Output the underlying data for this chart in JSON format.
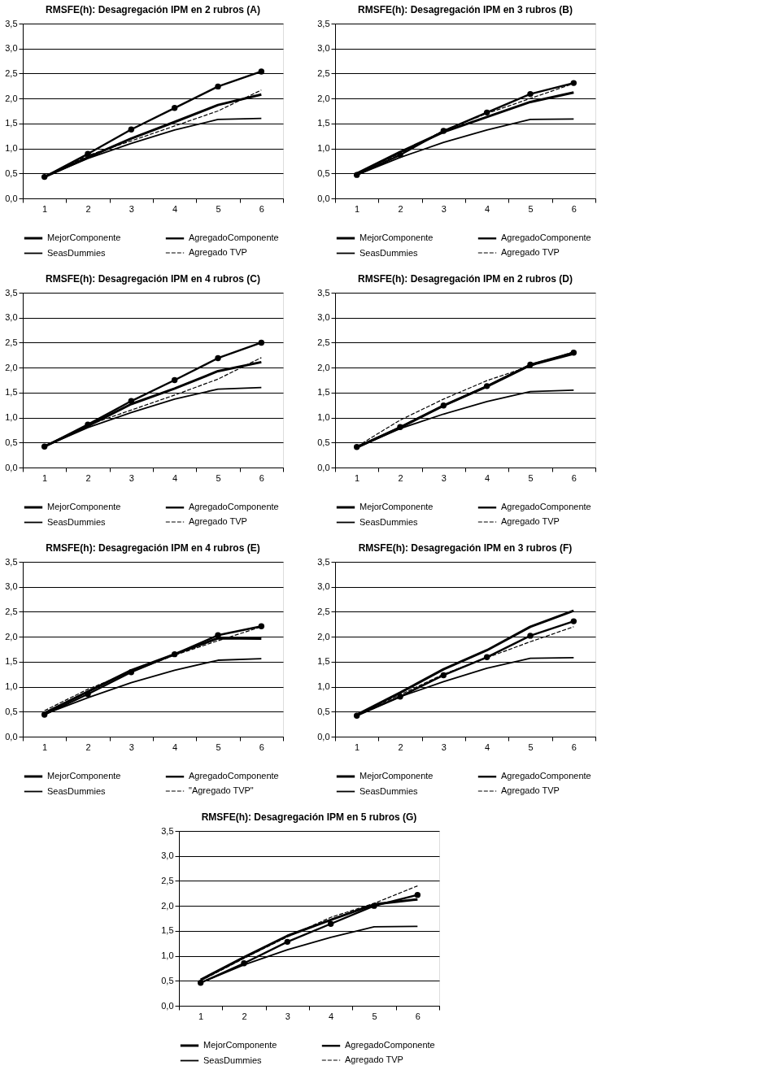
{
  "chart_data": [
    {
      "type": "line",
      "title": "RMSFE(h): Desagregación IPM en 2 rubros (A)",
      "categories": [
        "1",
        "2",
        "3",
        "4",
        "5",
        "6"
      ],
      "ylim": [
        0,
        3.5
      ],
      "yticks": [
        {
          "value": 0,
          "label": "0,0"
        },
        {
          "value": 0.5,
          "label": "0,5"
        },
        {
          "value": 1,
          "label": "1,0"
        },
        {
          "value": 1.5,
          "label": "1,5"
        },
        {
          "value": 2,
          "label": "2,0"
        },
        {
          "value": 2.5,
          "label": "2,5"
        },
        {
          "value": 3,
          "label": "3,0"
        },
        {
          "value": 3.5,
          "label": "3,5"
        }
      ],
      "grid": "y",
      "legend": "bottom",
      "series": [
        {
          "name": "MejorComponente",
          "color": "#000000",
          "values": [
            0.43,
            0.82,
            1.2,
            1.53,
            1.87,
            2.08
          ]
        },
        {
          "name": "AgregadoComponente",
          "color": "#000000",
          "marker": "circle",
          "values": [
            0.43,
            0.89,
            1.38,
            1.81,
            2.24,
            2.54
          ]
        },
        {
          "name": "SeasDummies",
          "color": "#000000",
          "values": [
            0.43,
            0.8,
            1.1,
            1.37,
            1.58,
            1.6
          ]
        },
        {
          "name": "Agregado TVP",
          "color": "#000000",
          "line_style": "dashed",
          "values": [
            0.43,
            0.86,
            1.15,
            1.45,
            1.75,
            2.17
          ]
        }
      ]
    },
    {
      "type": "line",
      "title": "RMSFE(h): Desagregación IPM en 3 rubros (B)",
      "categories": [
        "1",
        "2",
        "3",
        "4",
        "5",
        "6"
      ],
      "ylim": [
        0,
        3.5
      ],
      "yticks": [
        {
          "value": 0,
          "label": "0,0"
        },
        {
          "value": 0.5,
          "label": "0,5"
        },
        {
          "value": 1,
          "label": "1,0"
        },
        {
          "value": 1.5,
          "label": "1,5"
        },
        {
          "value": 2,
          "label": "2,0"
        },
        {
          "value": 2.5,
          "label": "2,5"
        },
        {
          "value": 3,
          "label": "3,0"
        },
        {
          "value": 3.5,
          "label": "3,5"
        }
      ],
      "grid": "y",
      "legend": "bottom",
      "series": [
        {
          "name": "MejorComponente",
          "color": "#000000",
          "values": [
            0.5,
            0.93,
            1.33,
            1.63,
            1.93,
            2.12
          ]
        },
        {
          "name": "AgregadoComponente",
          "color": "#000000",
          "marker": "circle",
          "values": [
            0.47,
            0.87,
            1.35,
            1.72,
            2.09,
            2.31
          ]
        },
        {
          "name": "SeasDummies",
          "color": "#000000",
          "values": [
            0.47,
            0.82,
            1.12,
            1.37,
            1.58,
            1.59
          ]
        },
        {
          "name": "Agregado TVP",
          "color": "#000000",
          "line_style": "dashed",
          "values": [
            0.5,
            0.9,
            1.36,
            1.7,
            2.0,
            2.3
          ]
        }
      ]
    },
    {
      "type": "line",
      "title": "RMSFE(h): Desagregación IPM en 4 rubros (C)",
      "categories": [
        "1",
        "2",
        "3",
        "4",
        "5",
        "6"
      ],
      "ylim": [
        0,
        3.5
      ],
      "yticks": [
        {
          "value": 0,
          "label": "0,0"
        },
        {
          "value": 0.5,
          "label": "0,5"
        },
        {
          "value": 1,
          "label": "1,0"
        },
        {
          "value": 1.5,
          "label": "1,5"
        },
        {
          "value": 2,
          "label": "2,0"
        },
        {
          "value": 2.5,
          "label": "2,5"
        },
        {
          "value": 3,
          "label": "3,0"
        },
        {
          "value": 3.5,
          "label": "3,5"
        }
      ],
      "grid": "y",
      "legend": "bottom",
      "series": [
        {
          "name": "MejorComponente",
          "color": "#000000",
          "values": [
            0.42,
            0.83,
            1.27,
            1.58,
            1.93,
            2.11
          ]
        },
        {
          "name": "AgregadoComponente",
          "color": "#000000",
          "marker": "circle",
          "values": [
            0.42,
            0.86,
            1.33,
            1.75,
            2.19,
            2.5
          ]
        },
        {
          "name": "SeasDummies",
          "color": "#000000",
          "values": [
            0.42,
            0.8,
            1.1,
            1.37,
            1.57,
            1.6
          ]
        },
        {
          "name": "Agregado TVP",
          "color": "#000000",
          "line_style": "dashed",
          "values": [
            0.42,
            0.85,
            1.15,
            1.45,
            1.77,
            2.2
          ]
        }
      ]
    },
    {
      "type": "line",
      "title": "RMSFE(h): Desagregación IPM en 2 rubros (D)",
      "categories": [
        "1",
        "2",
        "3",
        "4",
        "5",
        "6"
      ],
      "ylim": [
        0,
        3.5
      ],
      "yticks": [
        {
          "value": 0,
          "label": "0,0"
        },
        {
          "value": 0.5,
          "label": "0,5"
        },
        {
          "value": 1,
          "label": "1,0"
        },
        {
          "value": 1.5,
          "label": "1,5"
        },
        {
          "value": 2,
          "label": "2,0"
        },
        {
          "value": 2.5,
          "label": "2,5"
        },
        {
          "value": 3,
          "label": "3,0"
        },
        {
          "value": 3.5,
          "label": "3,5"
        }
      ],
      "grid": "y",
      "legend": "bottom",
      "series": [
        {
          "name": "MejorComponente",
          "color": "#000000",
          "values": [
            0.4,
            0.8,
            1.24,
            1.62,
            2.05,
            2.28
          ]
        },
        {
          "name": "AgregadoComponente",
          "color": "#000000",
          "marker": "circle",
          "values": [
            0.41,
            0.81,
            1.24,
            1.63,
            2.06,
            2.3
          ]
        },
        {
          "name": "SeasDummies",
          "color": "#000000",
          "values": [
            0.4,
            0.78,
            1.07,
            1.32,
            1.52,
            1.55
          ]
        },
        {
          "name": "Agregado TVP",
          "color": "#000000",
          "line_style": "dashed",
          "values": [
            0.42,
            0.95,
            1.37,
            1.74,
            2.03,
            2.32
          ]
        }
      ]
    },
    {
      "type": "line",
      "title": "RMSFE(h): Desagregación IPM en 4 rubros (E)",
      "categories": [
        "1",
        "2",
        "3",
        "4",
        "5",
        "6"
      ],
      "ylim": [
        0,
        3.5
      ],
      "yticks": [
        {
          "value": 0,
          "label": "0,0"
        },
        {
          "value": 0.5,
          "label": "0,5"
        },
        {
          "value": 1,
          "label": "1,0"
        },
        {
          "value": 1.5,
          "label": "1,5"
        },
        {
          "value": 2,
          "label": "2,0"
        },
        {
          "value": 2.5,
          "label": "2,5"
        },
        {
          "value": 3,
          "label": "3,0"
        },
        {
          "value": 3.5,
          "label": "3,5"
        }
      ],
      "grid": "y",
      "legend": "bottom",
      "series": [
        {
          "name": "MejorComponente",
          "color": "#000000",
          "values": [
            0.47,
            0.9,
            1.33,
            1.65,
            1.97,
            1.96
          ]
        },
        {
          "name": "AgregadoComponente",
          "color": "#000000",
          "marker": "circle",
          "values": [
            0.44,
            0.85,
            1.29,
            1.65,
            2.03,
            2.21
          ]
        },
        {
          "name": "SeasDummies",
          "color": "#000000",
          "values": [
            0.45,
            0.78,
            1.08,
            1.33,
            1.53,
            1.56
          ]
        },
        {
          "name": "\"Agregado TVP\"",
          "color": "#000000",
          "line_style": "dashed",
          "values": [
            0.52,
            0.95,
            1.3,
            1.63,
            1.92,
            2.2
          ]
        }
      ]
    },
    {
      "type": "line",
      "title": "RMSFE(h): Desagregación IPM en 3 rubros (F)",
      "categories": [
        "1",
        "2",
        "3",
        "4",
        "5",
        "6"
      ],
      "ylim": [
        0,
        3.5
      ],
      "yticks": [
        {
          "value": 0,
          "label": "0,0"
        },
        {
          "value": 0.5,
          "label": "0,5"
        },
        {
          "value": 1,
          "label": "1,0"
        },
        {
          "value": 1.5,
          "label": "1,5"
        },
        {
          "value": 2,
          "label": "2,0"
        },
        {
          "value": 2.5,
          "label": "2,5"
        },
        {
          "value": 3,
          "label": "3,0"
        },
        {
          "value": 3.5,
          "label": "3,5"
        }
      ],
      "grid": "y",
      "legend": "bottom",
      "series": [
        {
          "name": "MejorComponente",
          "color": "#000000",
          "values": [
            0.44,
            0.88,
            1.35,
            1.73,
            2.2,
            2.52
          ]
        },
        {
          "name": "AgregadoComponente",
          "color": "#000000",
          "marker": "circle",
          "values": [
            0.42,
            0.8,
            1.23,
            1.59,
            2.02,
            2.31
          ]
        },
        {
          "name": "SeasDummies",
          "color": "#000000",
          "values": [
            0.43,
            0.8,
            1.1,
            1.37,
            1.57,
            1.58
          ]
        },
        {
          "name": "Agregado TVP",
          "color": "#000000",
          "line_style": "dashed",
          "values": [
            0.44,
            0.84,
            1.25,
            1.58,
            1.9,
            2.2
          ]
        }
      ]
    },
    {
      "type": "line",
      "title": "RMSFE(h): Desagregación IPM en 5 rubros (G)",
      "categories": [
        "1",
        "2",
        "3",
        "4",
        "5",
        "6"
      ],
      "ylim": [
        0,
        3.5
      ],
      "yticks": [
        {
          "value": 0,
          "label": "0,0"
        },
        {
          "value": 0.5,
          "label": "0,5"
        },
        {
          "value": 1,
          "label": "1,0"
        },
        {
          "value": 1.5,
          "label": "1,5"
        },
        {
          "value": 2,
          "label": "2,0"
        },
        {
          "value": 2.5,
          "label": "2,5"
        },
        {
          "value": 3,
          "label": "3,0"
        },
        {
          "value": 3.5,
          "label": "3,5"
        }
      ],
      "grid": "y",
      "legend": "bottom",
      "series": [
        {
          "name": "MejorComponente",
          "color": "#000000",
          "values": [
            0.52,
            0.97,
            1.4,
            1.72,
            2.03,
            2.13
          ]
        },
        {
          "name": "AgregadoComponente",
          "color": "#000000",
          "marker": "circle",
          "values": [
            0.46,
            0.85,
            1.28,
            1.64,
            2.0,
            2.22
          ]
        },
        {
          "name": "SeasDummies",
          "color": "#000000",
          "values": [
            0.46,
            0.82,
            1.12,
            1.37,
            1.58,
            1.59
          ]
        },
        {
          "name": "Agregado TVP",
          "color": "#000000",
          "line_style": "dashed",
          "values": [
            0.5,
            0.95,
            1.38,
            1.77,
            2.05,
            2.4
          ]
        }
      ]
    }
  ]
}
